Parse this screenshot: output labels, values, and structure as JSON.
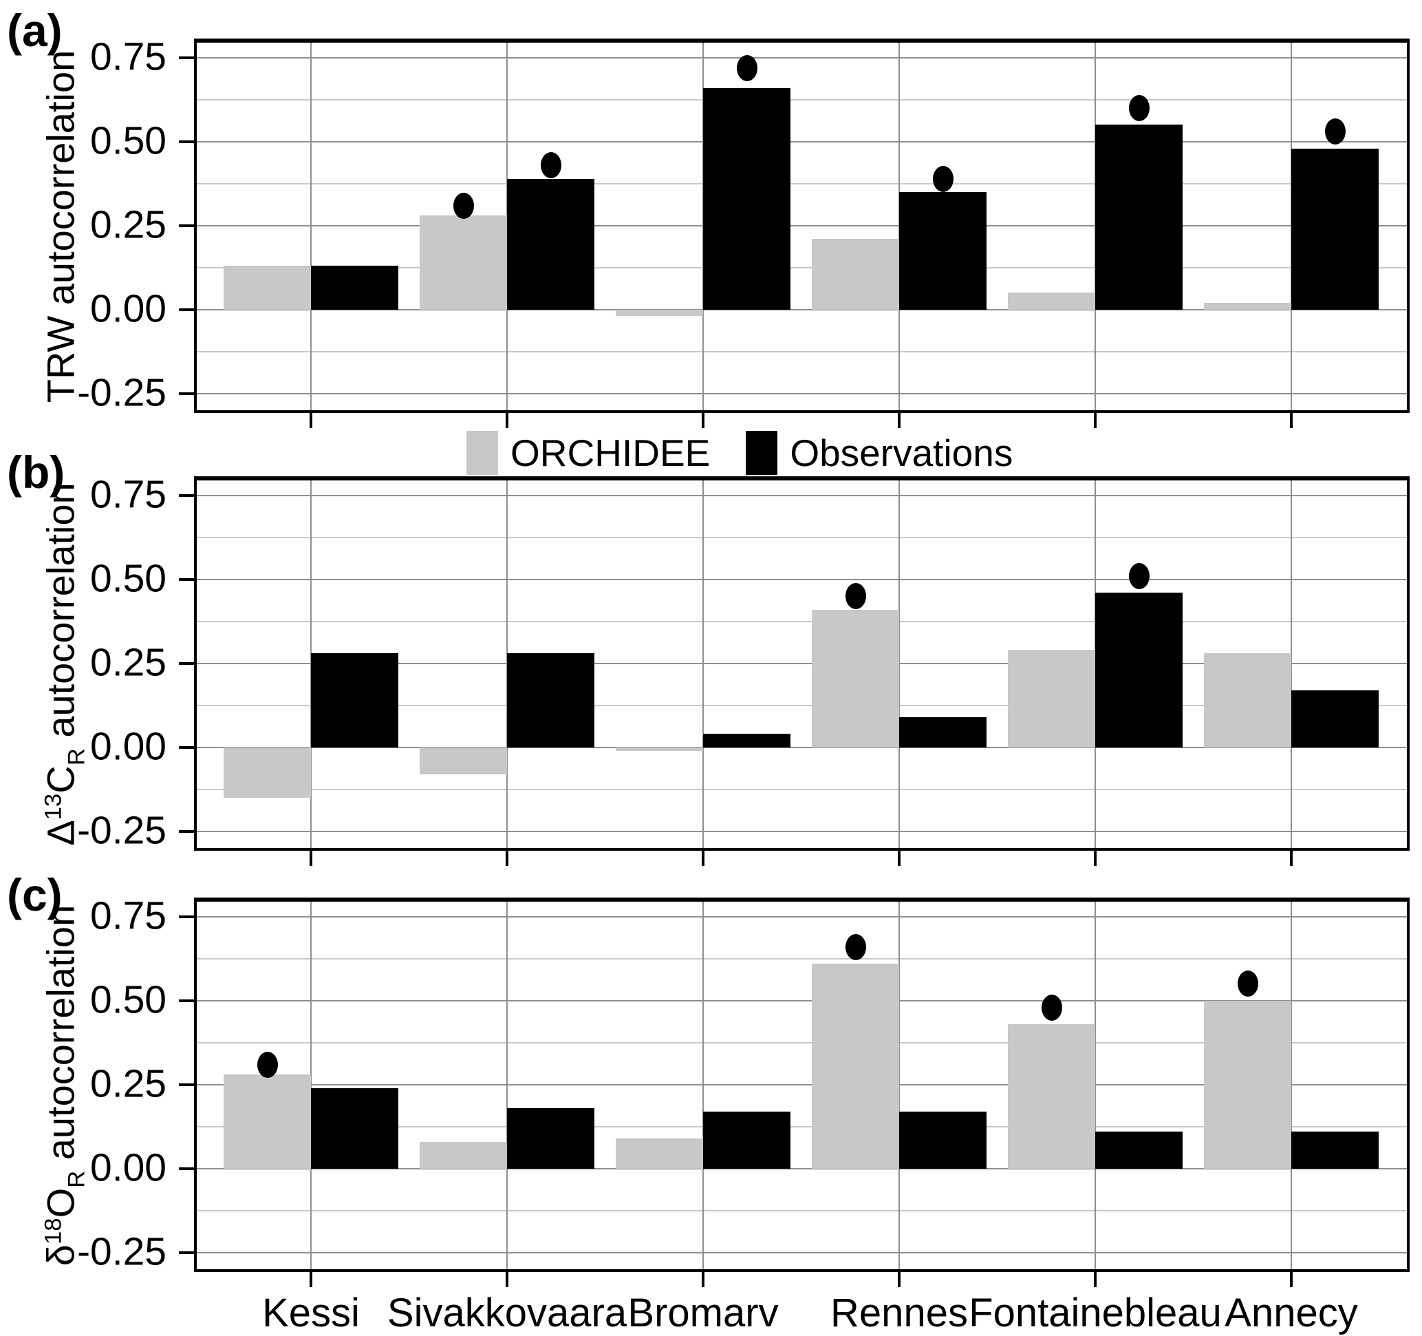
{
  "legend": {
    "items": [
      {
        "label": "ORCHIDEE",
        "color": "#c8c8c8"
      },
      {
        "label": "Observations",
        "color": "#000000"
      }
    ]
  },
  "x_axis": {
    "sites": [
      "Kessi",
      "Sivakkovaara",
      "Bromarv",
      "Rennes",
      "Fontainebleau",
      "Annecy"
    ]
  },
  "y_axis": {
    "tick_labels": [
      "0.75",
      "0.50",
      "0.25",
      "0.00",
      "-0.25"
    ],
    "tick_values": [
      0.75,
      0.5,
      0.25,
      0,
      -0.25
    ]
  },
  "chart_data": [
    {
      "type": "bar",
      "panel_letter": "(a)",
      "ylabel_plain": "TRW autocorrelation",
      "ylabel_parts": [
        {
          "t": "TRW autocorrelation"
        }
      ],
      "categories": [
        "Kessi",
        "Sivakkovaara",
        "Bromarv",
        "Rennes",
        "Fontainebleau",
        "Annecy"
      ],
      "xlabel": "",
      "ylim": [
        -0.3,
        0.8
      ],
      "grid": true,
      "legend_position": "below panel (a), centered",
      "series": [
        {
          "name": "ORCHIDEE",
          "color": "#c8c8c8",
          "values": [
            0.13,
            0.28,
            -0.02,
            0.21,
            0.05,
            0.02
          ],
          "sig_dots": [
            null,
            0.31,
            null,
            null,
            null,
            null
          ]
        },
        {
          "name": "Observations",
          "color": "#000000",
          "values": [
            0.13,
            0.39,
            0.66,
            0.35,
            0.55,
            0.48
          ],
          "sig_dots": [
            null,
            0.43,
            0.72,
            0.39,
            0.6,
            0.53
          ]
        }
      ]
    },
    {
      "type": "bar",
      "panel_letter": "(b)",
      "ylabel_plain": "Δ13CR autocorrelation",
      "ylabel_parts": [
        {
          "t": "Δ"
        },
        {
          "t": "13",
          "v": "sup"
        },
        {
          "t": "C"
        },
        {
          "t": "R",
          "v": "sub"
        },
        {
          "t": " autocorrelation"
        }
      ],
      "categories": [
        "Kessi",
        "Sivakkovaara",
        "Bromarv",
        "Rennes",
        "Fontainebleau",
        "Annecy"
      ],
      "xlabel": "",
      "ylim": [
        -0.3,
        0.8
      ],
      "grid": true,
      "series": [
        {
          "name": "ORCHIDEE",
          "color": "#c8c8c8",
          "values": [
            -0.15,
            -0.08,
            -0.01,
            0.41,
            0.29,
            0.28
          ],
          "sig_dots": [
            null,
            null,
            null,
            0.45,
            null,
            null
          ]
        },
        {
          "name": "Observations",
          "color": "#000000",
          "values": [
            0.28,
            0.28,
            0.04,
            0.09,
            0.46,
            0.17
          ],
          "sig_dots": [
            null,
            null,
            null,
            null,
            0.51,
            null
          ]
        }
      ]
    },
    {
      "type": "bar",
      "panel_letter": "(c)",
      "ylabel_plain": "δ18OR autocorrelation",
      "ylabel_parts": [
        {
          "t": "δ"
        },
        {
          "t": "18",
          "v": "sup"
        },
        {
          "t": "O"
        },
        {
          "t": "R",
          "v": "sub"
        },
        {
          "t": " autocorrelation"
        }
      ],
      "categories": [
        "Kessi",
        "Sivakkovaara",
        "Bromarv",
        "Rennes",
        "Fontainebleau",
        "Annecy"
      ],
      "xlabel": "",
      "ylim": [
        -0.3,
        0.8
      ],
      "grid": true,
      "series": [
        {
          "name": "ORCHIDEE",
          "color": "#c8c8c8",
          "values": [
            0.28,
            0.08,
            0.09,
            0.61,
            0.43,
            0.5
          ],
          "sig_dots": [
            0.31,
            null,
            null,
            0.66,
            0.48,
            0.55
          ]
        },
        {
          "name": "Observations",
          "color": "#000000",
          "values": [
            0.24,
            0.18,
            0.17,
            0.17,
            0.11,
            0.11
          ],
          "sig_dots": [
            null,
            null,
            null,
            null,
            null,
            null
          ]
        }
      ]
    }
  ]
}
